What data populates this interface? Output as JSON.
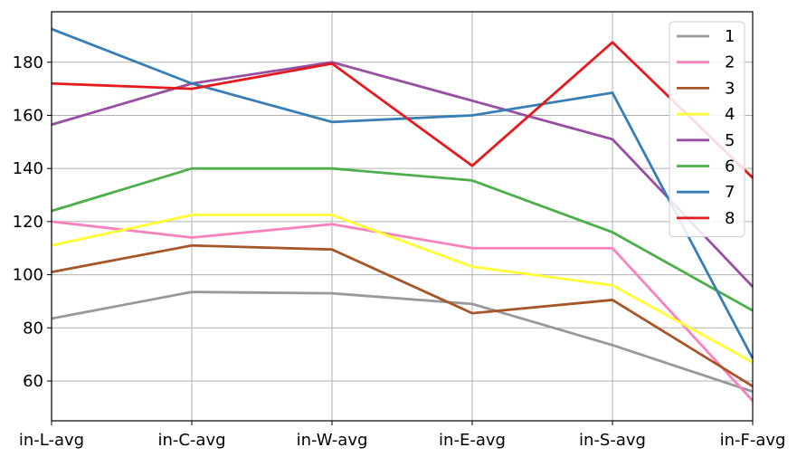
{
  "chart_data": {
    "type": "line",
    "categories": [
      "in-L-avg",
      "in-C-avg",
      "in-W-avg",
      "in-E-avg",
      "in-S-avg",
      "in-F-avg"
    ],
    "series": [
      {
        "name": "1",
        "color": "#999999",
        "values": [
          83.5,
          93.5,
          93.0,
          89.0,
          73.5,
          56.0
        ]
      },
      {
        "name": "2",
        "color": "#f781bf",
        "values": [
          120.0,
          114.0,
          119.0,
          110.0,
          110.0,
          52.5
        ]
      },
      {
        "name": "3",
        "color": "#a65628",
        "values": [
          101.0,
          111.0,
          109.5,
          85.5,
          90.5,
          58.0
        ]
      },
      {
        "name": "4",
        "color": "#ffff33",
        "values": [
          111.0,
          122.5,
          122.5,
          103.0,
          96.0,
          67.0
        ]
      },
      {
        "name": "5",
        "color": "#984ea3",
        "values": [
          156.5,
          172.0,
          180.0,
          165.5,
          151.0,
          95.5
        ]
      },
      {
        "name": "6",
        "color": "#4daf4a",
        "values": [
          124.0,
          140.0,
          140.0,
          135.5,
          116.0,
          86.5
        ]
      },
      {
        "name": "7",
        "color": "#377eb8",
        "values": [
          192.5,
          172.0,
          157.5,
          160.0,
          168.5,
          68.5
        ]
      },
      {
        "name": "8",
        "color": "#e41a1c",
        "values": [
          172.0,
          170.0,
          179.5,
          141.0,
          187.5,
          136.5
        ]
      }
    ],
    "yticks": [
      60,
      80,
      100,
      120,
      140,
      160,
      180
    ],
    "ylim": [
      45,
      199
    ],
    "title": "",
    "xlabel": "",
    "ylabel": "",
    "grid": true,
    "legend_position": "top-right"
  }
}
